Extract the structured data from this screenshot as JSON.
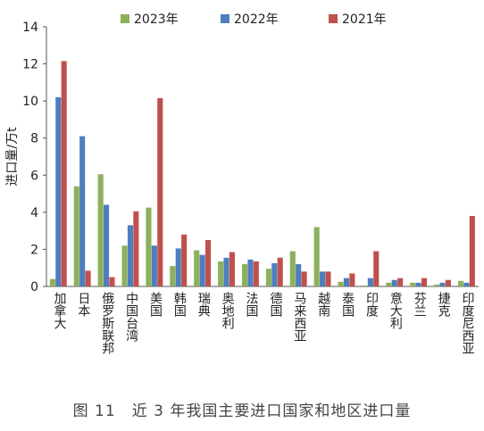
{
  "chart_data": {
    "type": "bar",
    "ylabel": "进口量/万t",
    "ylim": [
      0,
      14
    ],
    "yticks": [
      0,
      2,
      4,
      6,
      8,
      10,
      12,
      14
    ],
    "legend_position": "top",
    "grid": false,
    "categories": [
      "加拿大",
      "日本",
      "俄罗斯联邦",
      "中国台湾",
      "美国",
      "韩国",
      "瑞典",
      "奥地利",
      "法国",
      "德国",
      "马来西亚",
      "越南",
      "泰国",
      "印度",
      "意大利",
      "芬兰",
      "捷克",
      "印度尼西亚"
    ],
    "series": [
      {
        "name": "2023年",
        "color": "#8db05a",
        "values": [
          0.4,
          5.4,
          6.05,
          2.2,
          4.25,
          1.1,
          1.95,
          1.35,
          1.2,
          0.95,
          1.9,
          3.2,
          0.25,
          0.05,
          0.2,
          0.2,
          0.1,
          0.3
        ]
      },
      {
        "name": "2022年",
        "color": "#4d7fbf",
        "values": [
          10.2,
          8.1,
          4.4,
          3.3,
          2.2,
          2.05,
          1.7,
          1.55,
          1.45,
          1.25,
          1.2,
          0.8,
          0.45,
          0.45,
          0.35,
          0.2,
          0.2,
          0.2
        ]
      },
      {
        "name": "2021年",
        "color": "#c0504d",
        "values": [
          12.15,
          0.85,
          0.5,
          4.05,
          10.15,
          2.8,
          2.5,
          1.85,
          1.35,
          1.55,
          0.8,
          0.8,
          0.7,
          1.9,
          0.45,
          0.45,
          0.35,
          3.8
        ]
      }
    ]
  },
  "caption": "图 11　近 3 年我国主要进口国家和地区进口量"
}
